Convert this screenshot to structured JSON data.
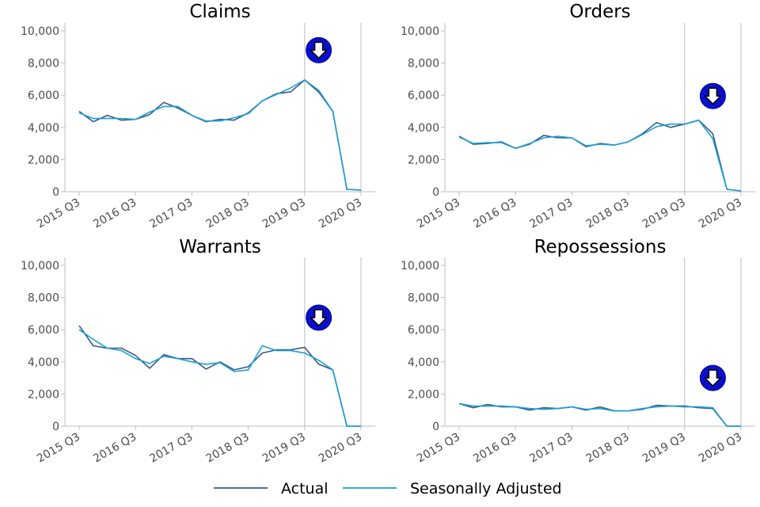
{
  "chart_data": [
    {
      "type": "line",
      "title": "Claims",
      "categories": [
        "2015 Q3",
        "2015 Q4",
        "2016 Q1",
        "2016 Q2",
        "2016 Q3",
        "2016 Q4",
        "2017 Q1",
        "2017 Q2",
        "2017 Q3",
        "2017 Q4",
        "2018 Q1",
        "2018 Q2",
        "2018 Q3",
        "2018 Q4",
        "2019 Q1",
        "2019 Q2",
        "2019 Q3",
        "2019 Q4",
        "2020 Q1",
        "2020 Q2",
        "2020 Q3"
      ],
      "tick_labels": [
        "2015 Q3",
        "2016 Q3",
        "2017 Q3",
        "2018 Q3",
        "2019 Q3",
        "2020 Q3"
      ],
      "ylim": [
        0,
        10000
      ],
      "yticks": [
        "0",
        "2,000",
        "4,000",
        "6,000",
        "8,000",
        "10,000"
      ],
      "series": [
        {
          "name": "Actual",
          "color": "#3d5a80",
          "values": [
            5000,
            4350,
            4750,
            4450,
            4500,
            4800,
            5550,
            5200,
            4750,
            4350,
            4500,
            4450,
            4900,
            5650,
            6100,
            6200,
            6950,
            6200,
            5000,
            150,
            100
          ]
        },
        {
          "name": "Seasonally Adjusted",
          "color": "#1aa0d8",
          "values": [
            4900,
            4550,
            4550,
            4550,
            4500,
            4950,
            5300,
            5300,
            4750,
            4400,
            4400,
            4600,
            4850,
            5650,
            6050,
            6450,
            6950,
            6300,
            5000,
            150,
            100
          ]
        }
      ],
      "vlines": [
        "2019 Q3",
        "2020 Q3"
      ],
      "marker": {
        "icon": "down-arrow-icon",
        "category": "2019 Q4",
        "value": 8800
      }
    },
    {
      "type": "line",
      "title": "Orders",
      "categories": [
        "2015 Q3",
        "2015 Q4",
        "2016 Q1",
        "2016 Q2",
        "2016 Q3",
        "2016 Q4",
        "2017 Q1",
        "2017 Q2",
        "2017 Q3",
        "2017 Q4",
        "2018 Q1",
        "2018 Q2",
        "2018 Q3",
        "2018 Q4",
        "2019 Q1",
        "2019 Q2",
        "2019 Q3",
        "2019 Q4",
        "2020 Q1",
        "2020 Q2",
        "2020 Q3"
      ],
      "tick_labels": [
        "2015 Q3",
        "2016 Q3",
        "2017 Q3",
        "2018 Q3",
        "2019 Q3",
        "2020 Q3"
      ],
      "ylim": [
        0,
        10000
      ],
      "yticks": [
        "0",
        "2,000",
        "4,000",
        "6,000",
        "8,000",
        "10,000"
      ],
      "series": [
        {
          "name": "Actual",
          "color": "#3d5a80",
          "values": [
            3450,
            2950,
            3000,
            3100,
            2700,
            2950,
            3500,
            3350,
            3350,
            2800,
            3000,
            2900,
            3100,
            3600,
            4300,
            4000,
            4200,
            4450,
            3600,
            150,
            50
          ]
        },
        {
          "name": "Seasonally Adjusted",
          "color": "#1aa0d8",
          "values": [
            3400,
            3000,
            3050,
            3050,
            2700,
            3000,
            3350,
            3450,
            3350,
            2850,
            2950,
            2900,
            3100,
            3550,
            4050,
            4200,
            4200,
            4450,
            3300,
            150,
            50
          ]
        }
      ],
      "vlines": [
        "2019 Q3",
        "2020 Q3"
      ],
      "marker": {
        "icon": "down-arrow-icon",
        "category": "2020 Q1",
        "value": 5950
      }
    },
    {
      "type": "line",
      "title": "Warrants",
      "categories": [
        "2015 Q3",
        "2015 Q4",
        "2016 Q1",
        "2016 Q2",
        "2016 Q3",
        "2016 Q4",
        "2017 Q1",
        "2017 Q2",
        "2017 Q3",
        "2017 Q4",
        "2018 Q1",
        "2018 Q2",
        "2018 Q3",
        "2018 Q4",
        "2019 Q1",
        "2019 Q2",
        "2019 Q3",
        "2019 Q4",
        "2020 Q1",
        "2020 Q2",
        "2020 Q3"
      ],
      "tick_labels": [
        "2015 Q3",
        "2016 Q3",
        "2017 Q3",
        "2018 Q3",
        "2019 Q3",
        "2020 Q3"
      ],
      "ylim": [
        0,
        10000
      ],
      "yticks": [
        "0",
        "2,000",
        "4,000",
        "6,000",
        "8,000",
        "10,000"
      ],
      "series": [
        {
          "name": "Actual",
          "color": "#3d5a80",
          "values": [
            6250,
            5000,
            4850,
            4850,
            4400,
            3600,
            4450,
            4200,
            4200,
            3550,
            4000,
            3500,
            3700,
            4550,
            4750,
            4750,
            4900,
            3850,
            3500,
            0,
            0
          ]
        },
        {
          "name": "Seasonally Adjusted",
          "color": "#1aa0d8",
          "values": [
            6000,
            5400,
            4850,
            4700,
            4200,
            3900,
            4350,
            4200,
            4000,
            3850,
            3950,
            3400,
            3500,
            5000,
            4700,
            4700,
            4550,
            4100,
            3500,
            0,
            0
          ]
        }
      ],
      "vlines": [
        "2019 Q3",
        "2020 Q3"
      ],
      "marker": {
        "icon": "down-arrow-icon",
        "category": "2019 Q4",
        "value": 6750
      }
    },
    {
      "type": "line",
      "title": "Repossessions",
      "categories": [
        "2015 Q3",
        "2015 Q4",
        "2016 Q1",
        "2016 Q2",
        "2016 Q3",
        "2016 Q4",
        "2017 Q1",
        "2017 Q2",
        "2017 Q3",
        "2017 Q4",
        "2018 Q1",
        "2018 Q2",
        "2018 Q3",
        "2018 Q4",
        "2019 Q1",
        "2019 Q2",
        "2019 Q3",
        "2019 Q4",
        "2020 Q1",
        "2020 Q2",
        "2020 Q3"
      ],
      "tick_labels": [
        "2015 Q3",
        "2016 Q3",
        "2017 Q3",
        "2018 Q3",
        "2019 Q3",
        "2020 Q3"
      ],
      "ylim": [
        0,
        10000
      ],
      "yticks": [
        "0",
        "2,000",
        "4,000",
        "6,000",
        "8,000",
        "10,000"
      ],
      "series": [
        {
          "name": "Actual",
          "color": "#3d5a80",
          "values": [
            1400,
            1150,
            1350,
            1200,
            1200,
            1000,
            1150,
            1100,
            1200,
            1000,
            1200,
            950,
            950,
            1050,
            1300,
            1250,
            1250,
            1150,
            1100,
            0,
            0
          ]
        },
        {
          "name": "Seasonally Adjusted",
          "color": "#1aa0d8",
          "values": [
            1400,
            1250,
            1250,
            1250,
            1200,
            1100,
            1050,
            1100,
            1200,
            1050,
            1100,
            950,
            950,
            1100,
            1200,
            1250,
            1200,
            1200,
            1150,
            0,
            0
          ]
        }
      ],
      "vlines": [
        "2019 Q3",
        "2020 Q3"
      ],
      "marker": {
        "icon": "down-arrow-icon",
        "category": "2020 Q1",
        "value": 3000
      }
    }
  ],
  "legend": {
    "placement": "bottom",
    "items": [
      {
        "label": "Actual",
        "color": "#3d5a80"
      },
      {
        "label": "Seasonally Adjusted",
        "color": "#1aa0d8"
      }
    ]
  }
}
